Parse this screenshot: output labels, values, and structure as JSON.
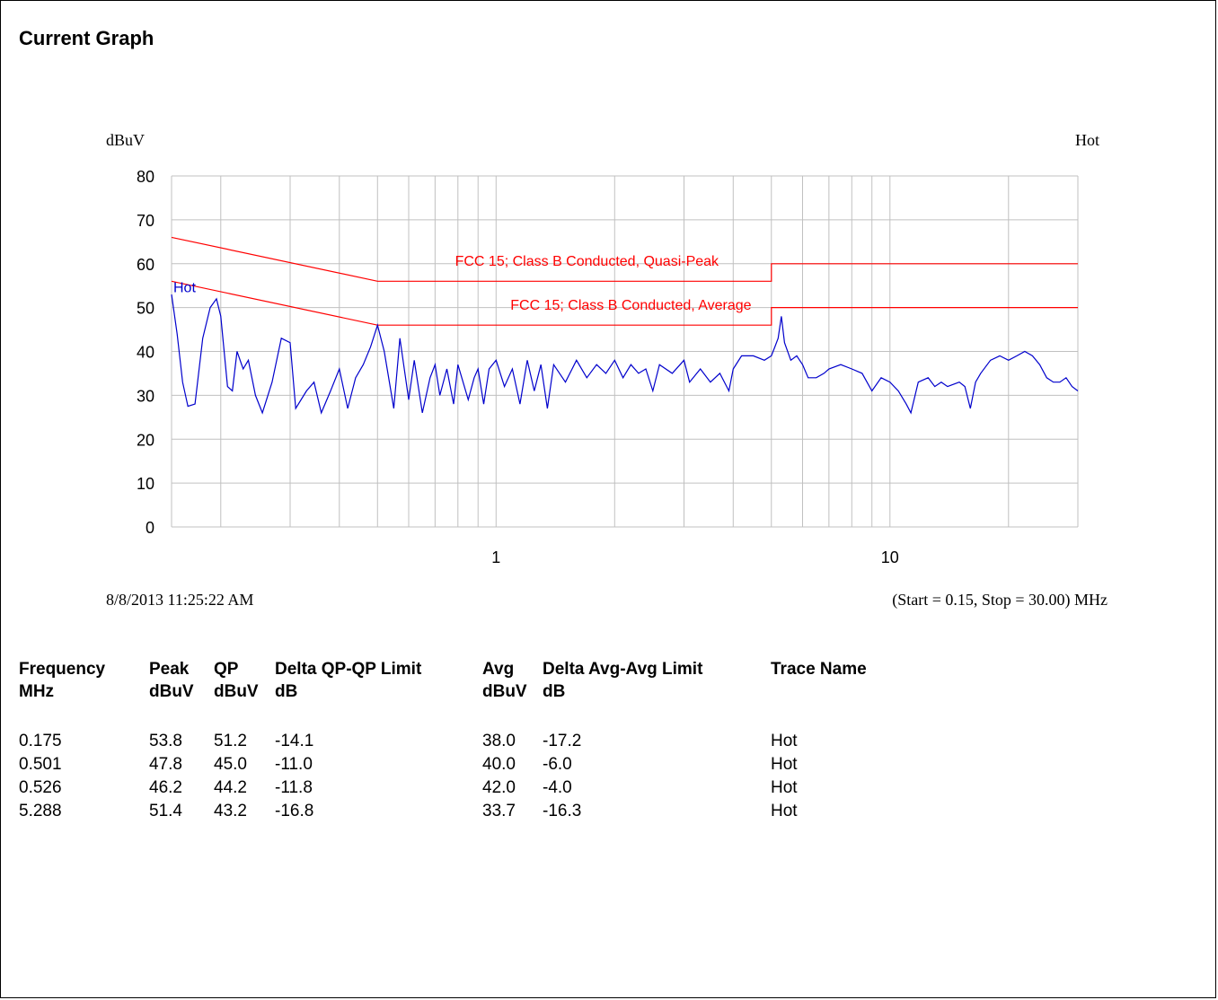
{
  "page": {
    "title": "Current Graph"
  },
  "chart_data": {
    "type": "line",
    "ylabel": "dBuV",
    "trace_label": "Hot",
    "x_scale": "log",
    "xlim": [
      0.15,
      30
    ],
    "ylim": [
      0,
      80
    ],
    "y_ticks": [
      0,
      10,
      20,
      30,
      40,
      50,
      60,
      70,
      80
    ],
    "x_ticks": [
      1,
      10
    ],
    "x_tick_labels": [
      "1",
      "10"
    ],
    "grid": true,
    "timestamp": "8/8/2013 11:25:22 AM",
    "range_text": "(Start = 0.15, Stop = 30.00) MHz",
    "colors": {
      "limits": "#ff0000",
      "trace": "#0000cc",
      "grid": "#c0c0c0"
    },
    "limits": [
      {
        "name": "FCC 15; Class B Conducted, Quasi-Peak",
        "points": [
          [
            0.15,
            66
          ],
          [
            0.5,
            56
          ],
          [
            5,
            56
          ],
          [
            5,
            60
          ],
          [
            30,
            60
          ]
        ]
      },
      {
        "name": "FCC 15; Class B Conducted, Average",
        "points": [
          [
            0.15,
            56
          ],
          [
            0.5,
            46
          ],
          [
            5,
            46
          ],
          [
            5,
            50
          ],
          [
            30,
            50
          ]
        ]
      }
    ],
    "series": [
      {
        "name": "Hot",
        "points": [
          [
            0.15,
            53
          ],
          [
            0.155,
            44
          ],
          [
            0.16,
            33
          ],
          [
            0.165,
            27.5
          ],
          [
            0.172,
            28
          ],
          [
            0.18,
            43
          ],
          [
            0.188,
            50
          ],
          [
            0.195,
            52
          ],
          [
            0.2,
            48
          ],
          [
            0.208,
            32
          ],
          [
            0.214,
            31
          ],
          [
            0.22,
            40
          ],
          [
            0.228,
            36
          ],
          [
            0.235,
            38
          ],
          [
            0.245,
            30
          ],
          [
            0.255,
            26
          ],
          [
            0.27,
            33
          ],
          [
            0.285,
            43
          ],
          [
            0.3,
            42
          ],
          [
            0.31,
            27
          ],
          [
            0.33,
            31
          ],
          [
            0.345,
            33
          ],
          [
            0.36,
            26
          ],
          [
            0.38,
            31
          ],
          [
            0.4,
            36
          ],
          [
            0.42,
            27
          ],
          [
            0.44,
            34
          ],
          [
            0.46,
            37
          ],
          [
            0.48,
            41
          ],
          [
            0.5,
            46
          ],
          [
            0.52,
            40
          ],
          [
            0.55,
            27
          ],
          [
            0.57,
            43
          ],
          [
            0.6,
            29
          ],
          [
            0.62,
            38
          ],
          [
            0.65,
            26
          ],
          [
            0.68,
            34
          ],
          [
            0.7,
            37
          ],
          [
            0.72,
            30
          ],
          [
            0.75,
            36
          ],
          [
            0.78,
            28
          ],
          [
            0.8,
            37
          ],
          [
            0.85,
            29
          ],
          [
            0.88,
            34
          ],
          [
            0.9,
            36
          ],
          [
            0.93,
            28
          ],
          [
            0.96,
            36
          ],
          [
            1.0,
            38
          ],
          [
            1.05,
            32
          ],
          [
            1.1,
            36
          ],
          [
            1.15,
            28
          ],
          [
            1.2,
            38
          ],
          [
            1.25,
            31
          ],
          [
            1.3,
            37
          ],
          [
            1.35,
            27
          ],
          [
            1.4,
            37
          ],
          [
            1.5,
            33
          ],
          [
            1.6,
            38
          ],
          [
            1.7,
            34
          ],
          [
            1.8,
            37
          ],
          [
            1.9,
            35
          ],
          [
            2.0,
            38
          ],
          [
            2.1,
            34
          ],
          [
            2.2,
            37
          ],
          [
            2.3,
            35
          ],
          [
            2.4,
            36
          ],
          [
            2.5,
            31
          ],
          [
            2.6,
            37
          ],
          [
            2.8,
            35
          ],
          [
            3.0,
            38
          ],
          [
            3.1,
            33
          ],
          [
            3.3,
            36
          ],
          [
            3.5,
            33
          ],
          [
            3.7,
            35
          ],
          [
            3.9,
            31
          ],
          [
            4.0,
            36
          ],
          [
            4.2,
            39
          ],
          [
            4.5,
            39
          ],
          [
            4.8,
            38
          ],
          [
            5.0,
            39
          ],
          [
            5.1,
            41
          ],
          [
            5.2,
            43
          ],
          [
            5.3,
            48
          ],
          [
            5.4,
            42
          ],
          [
            5.6,
            38
          ],
          [
            5.8,
            39
          ],
          [
            6.0,
            37
          ],
          [
            6.2,
            34
          ],
          [
            6.5,
            34
          ],
          [
            6.8,
            35
          ],
          [
            7.0,
            36
          ],
          [
            7.5,
            37
          ],
          [
            8.0,
            36
          ],
          [
            8.5,
            35
          ],
          [
            9.0,
            31
          ],
          [
            9.5,
            34
          ],
          [
            10.0,
            33
          ],
          [
            10.5,
            31
          ],
          [
            11.0,
            28
          ],
          [
            11.3,
            26
          ],
          [
            11.8,
            33
          ],
          [
            12.5,
            34
          ],
          [
            13.0,
            32
          ],
          [
            13.5,
            33
          ],
          [
            14.0,
            32
          ],
          [
            15.0,
            33
          ],
          [
            15.5,
            32
          ],
          [
            16.0,
            27
          ],
          [
            16.5,
            33
          ],
          [
            17.0,
            35
          ],
          [
            18.0,
            38
          ],
          [
            19.0,
            39
          ],
          [
            20.0,
            38
          ],
          [
            21.0,
            39
          ],
          [
            22.0,
            40
          ],
          [
            23.0,
            39
          ],
          [
            24.0,
            37
          ],
          [
            25.0,
            34
          ],
          [
            26.0,
            33
          ],
          [
            27.0,
            33
          ],
          [
            28.0,
            34
          ],
          [
            29.0,
            32
          ],
          [
            30.0,
            31
          ]
        ]
      }
    ]
  },
  "table": {
    "headers": [
      [
        "Frequency",
        "MHz"
      ],
      [
        "Peak",
        "dBuV"
      ],
      [
        "QP",
        "dBuV"
      ],
      [
        "Delta QP-QP Limit",
        "dB"
      ],
      [
        "Avg",
        "dBuV"
      ],
      [
        "Delta Avg-Avg Limit",
        "dB"
      ],
      [
        "Trace Name",
        ""
      ]
    ],
    "rows": [
      [
        "0.175",
        "53.8",
        "51.2",
        "-14.1",
        "38.0",
        "-17.2",
        "Hot"
      ],
      [
        "0.501",
        "47.8",
        "45.0",
        "-11.0",
        "40.0",
        "-6.0",
        "Hot"
      ],
      [
        "0.526",
        "46.2",
        "44.2",
        "-11.8",
        "42.0",
        "-4.0",
        "Hot"
      ],
      [
        "5.288",
        "51.4",
        "43.2",
        "-16.8",
        "33.7",
        "-16.3",
        "Hot"
      ]
    ]
  }
}
